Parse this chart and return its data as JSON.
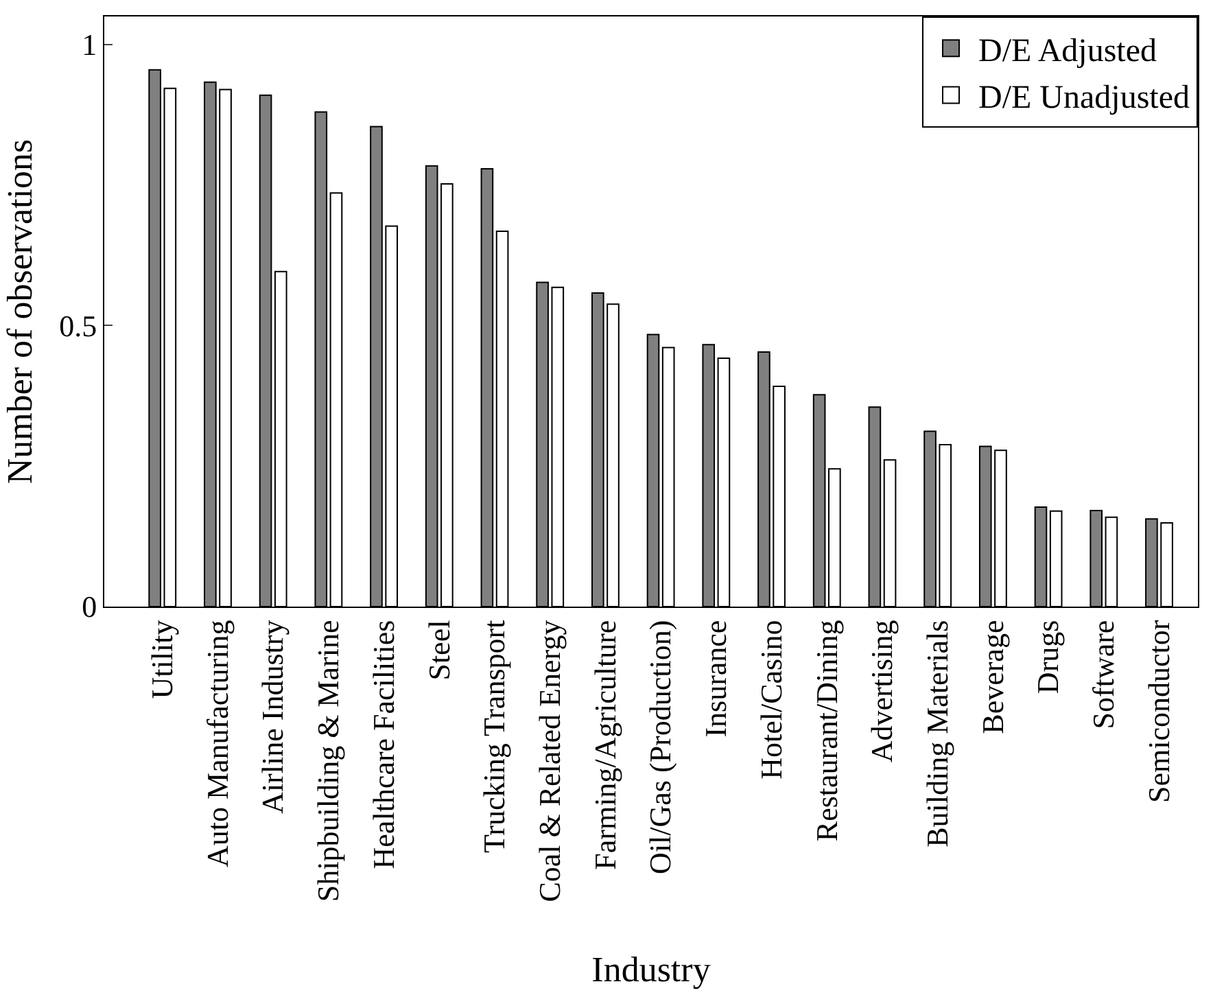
{
  "chart_data": {
    "type": "bar",
    "xlabel": "Industry",
    "ylabel": "Number of observations",
    "categories": [
      "Utility",
      "Auto Manufacturing",
      "Airline Industry",
      "Shipbuilding & Marine",
      "Healthcare Facilities",
      "Steel",
      "Trucking Transport",
      "Coal & Related Energy",
      "Farming/Agriculture",
      "Oil/Gas (Production)",
      "Insurance",
      "Hotel/Casino",
      "Restaurant/Dining",
      "Advertising",
      "Building Materials",
      "Beverage",
      "Drugs",
      "Software",
      "Semiconductor"
    ],
    "series": [
      {
        "name": "D/E Adjusted",
        "color": "#808080",
        "values": [
          0.955,
          0.933,
          0.91,
          0.88,
          0.854,
          0.784,
          0.779,
          0.577,
          0.558,
          0.484,
          0.466,
          0.453,
          0.377,
          0.355,
          0.312,
          0.285,
          0.177,
          0.171,
          0.156
        ]
      },
      {
        "name": "D/E Unadjusted",
        "color": "#ffffff",
        "values": [
          0.922,
          0.92,
          0.596,
          0.736,
          0.677,
          0.752,
          0.668,
          0.568,
          0.538,
          0.461,
          0.442,
          0.392,
          0.245,
          0.261,
          0.288,
          0.278,
          0.17,
          0.159,
          0.149
        ]
      }
    ],
    "ylim": [
      0,
      1.05
    ],
    "yticks": [
      0,
      0.5,
      1
    ],
    "legend": "top right"
  }
}
